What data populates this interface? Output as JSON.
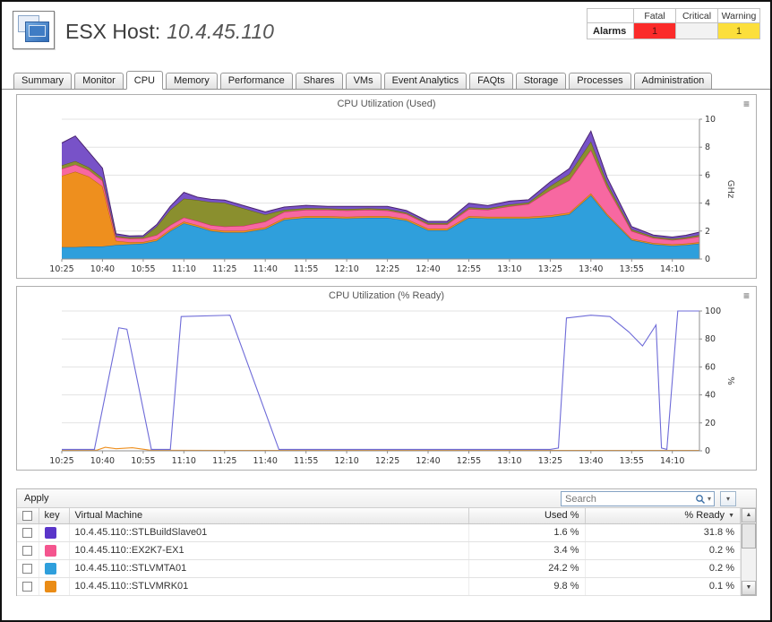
{
  "header": {
    "title_prefix": "ESX Host:",
    "title_value": "10.4.45.110"
  },
  "alarms": {
    "label": "Alarms",
    "levels": [
      {
        "name": "Fatal",
        "count": "1",
        "bg": "#fb2b2a",
        "fg": "#531211"
      },
      {
        "name": "Critical",
        "count": "",
        "bg": "#f2f2f2",
        "fg": "#333333"
      },
      {
        "name": "Warning",
        "count": "1",
        "bg": "#fcdf3c",
        "fg": "#4d4006"
      }
    ]
  },
  "tabs": [
    {
      "label": "Summary",
      "active": false
    },
    {
      "label": "Monitor",
      "active": false
    },
    {
      "label": "CPU",
      "active": true
    },
    {
      "label": "Memory",
      "active": false
    },
    {
      "label": "Performance",
      "active": false
    },
    {
      "label": "Shares",
      "active": false
    },
    {
      "label": "VMs",
      "active": false
    },
    {
      "label": "Event Analytics",
      "active": false
    },
    {
      "label": "FAQts",
      "active": false
    },
    {
      "label": "Storage",
      "active": false
    },
    {
      "label": "Processes",
      "active": false
    },
    {
      "label": "Administration",
      "active": false
    }
  ],
  "icons": {
    "chart_menu": "≡",
    "search_dropdown": "▾",
    "column_chooser": "▾",
    "sort_desc": "▼",
    "scroll_up": "▲",
    "scroll_down": "▼"
  },
  "toolbar": {
    "apply_label": "Apply",
    "search_placeholder": "Search"
  },
  "table": {
    "headers": {
      "key": "key",
      "vm": "Virtual Machine",
      "used": "Used %",
      "ready": "% Ready"
    },
    "rows": [
      {
        "color": "#5a35c9",
        "vm": "10.4.45.110::STLBuildSlave01",
        "used": "1.6 %",
        "ready": "31.8 %"
      },
      {
        "color": "#f4558e",
        "vm": "10.4.45.110::EX2K7-EX1",
        "used": "3.4 %",
        "ready": "0.2 %"
      },
      {
        "color": "#2f9fdc",
        "vm": "10.4.45.110::STLVMTA01",
        "used": "24.2 %",
        "ready": "0.2 %"
      },
      {
        "color": "#ea8c16",
        "vm": "10.4.45.110::STLVMRK01",
        "used": "9.8 %",
        "ready": "0.1 %"
      }
    ]
  },
  "chart_data": [
    {
      "type": "area",
      "title": "CPU Utilization (Used)",
      "ylabel": "GHz",
      "ylim": [
        0,
        10
      ],
      "yticks": [
        0,
        2,
        4,
        6,
        8,
        10
      ],
      "xmax": 235,
      "xtick_minutes": [
        0,
        15,
        30,
        45,
        60,
        75,
        90,
        105,
        120,
        135,
        150,
        165,
        180,
        195,
        210,
        225
      ],
      "xtick_labels": [
        "10:25",
        "10:40",
        "10:55",
        "11:10",
        "11:25",
        "11:40",
        "11:55",
        "12:10",
        "12:25",
        "12:40",
        "12:55",
        "13:10",
        "13:25",
        "13:40",
        "13:55",
        "14:10"
      ],
      "x": [
        0,
        5,
        10,
        15,
        20,
        25,
        30,
        35,
        40,
        45,
        50,
        55,
        60,
        67,
        75,
        82,
        90,
        98,
        105,
        113,
        120,
        127,
        135,
        142,
        150,
        157,
        165,
        172,
        180,
        187,
        195,
        201,
        210,
        218,
        225,
        230,
        235
      ],
      "series": [
        {
          "name": "10.4.45.110::STLVMTA01",
          "color": "#2f9fdc",
          "stroke": "#1b6fa8",
          "values": [
            0.85,
            0.85,
            0.9,
            0.9,
            1.0,
            1.05,
            1.1,
            1.3,
            2.0,
            2.55,
            2.3,
            2.0,
            1.9,
            1.9,
            2.15,
            2.8,
            2.95,
            2.95,
            2.9,
            2.95,
            2.95,
            2.75,
            2.05,
            2.05,
            2.95,
            2.9,
            2.9,
            2.9,
            3.0,
            3.2,
            4.55,
            3.1,
            1.35,
            1.05,
            0.95,
            1.0,
            1.1
          ]
        },
        {
          "name": "10.4.45.110::STLVMRK01",
          "color": "#ee8f1e",
          "stroke": "#b5680d",
          "values": [
            5.1,
            5.4,
            5.0,
            4.3,
            0.3,
            0.15,
            0.12,
            0.12,
            0.12,
            0.12,
            0.12,
            0.12,
            0.12,
            0.12,
            0.12,
            0.12,
            0.12,
            0.12,
            0.12,
            0.12,
            0.12,
            0.12,
            0.12,
            0.12,
            0.12,
            0.12,
            0.12,
            0.12,
            0.12,
            0.12,
            0.15,
            0.12,
            0.1,
            0.1,
            0.1,
            0.1,
            0.1
          ]
        },
        {
          "name": "10.4.45.110::EX2K7-EX1",
          "color": "#f768a1",
          "stroke": "#d61e78",
          "values": [
            0.5,
            0.5,
            0.45,
            0.4,
            0.25,
            0.25,
            0.25,
            0.3,
            0.3,
            0.3,
            0.3,
            0.3,
            0.3,
            0.35,
            0.4,
            0.45,
            0.45,
            0.45,
            0.45,
            0.45,
            0.4,
            0.35,
            0.3,
            0.3,
            0.5,
            0.5,
            0.75,
            0.9,
            1.8,
            2.3,
            3.1,
            1.9,
            0.55,
            0.35,
            0.3,
            0.35,
            0.4
          ]
        },
        {
          "name": "other-vm-olive",
          "color": "#8a8f2e",
          "stroke": "#606414",
          "values": [
            0.25,
            0.25,
            0.2,
            0.2,
            0.1,
            0.1,
            0.1,
            0.6,
            1.1,
            1.35,
            1.5,
            1.65,
            1.7,
            1.25,
            0.5,
            0.15,
            0.12,
            0.1,
            0.1,
            0.1,
            0.1,
            0.1,
            0.1,
            0.1,
            0.12,
            0.1,
            0.12,
            0.12,
            0.3,
            0.45,
            0.6,
            0.3,
            0.12,
            0.1,
            0.1,
            0.1,
            0.12
          ]
        },
        {
          "name": "10.4.45.110::STLBuildSlave01",
          "color": "#7852c8",
          "stroke": "#4a2470",
          "values": [
            1.6,
            1.8,
            1.1,
            0.7,
            0.15,
            0.1,
            0.1,
            0.15,
            0.25,
            0.45,
            0.2,
            0.2,
            0.2,
            0.2,
            0.2,
            0.2,
            0.2,
            0.15,
            0.2,
            0.15,
            0.2,
            0.15,
            0.12,
            0.12,
            0.3,
            0.2,
            0.25,
            0.2,
            0.3,
            0.4,
            0.75,
            0.4,
            0.2,
            0.12,
            0.12,
            0.15,
            0.2
          ]
        }
      ]
    },
    {
      "type": "line",
      "title": "CPU Utilization (% Ready)",
      "ylabel": "%",
      "ylim": [
        0,
        100
      ],
      "yticks": [
        0,
        20,
        40,
        60,
        80,
        100
      ],
      "xmax": 235,
      "xtick_minutes": [
        0,
        15,
        30,
        45,
        60,
        75,
        90,
        105,
        120,
        135,
        150,
        165,
        180,
        195,
        210,
        225
      ],
      "xtick_labels": [
        "10:25",
        "10:40",
        "10:55",
        "11:10",
        "11:25",
        "11:40",
        "11:55",
        "12:10",
        "12:25",
        "12:40",
        "12:55",
        "13:10",
        "13:25",
        "13:40",
        "13:55",
        "14:10"
      ],
      "series": [
        {
          "name": "orange-blip",
          "color": "#ee8f1e",
          "x": [
            0,
            13,
            16,
            20,
            26,
            32,
            40,
            60,
            120,
            180,
            235
          ],
          "values": [
            0.4,
            0.5,
            2.5,
            1.5,
            2.2,
            0.6,
            0.4,
            0.3,
            0.3,
            0.3,
            0.3
          ]
        },
        {
          "name": "percent-ready",
          "color": "#6e6bd8",
          "x": [
            0,
            12,
            21,
            24,
            33,
            40,
            44,
            62,
            80,
            95,
            110,
            130,
            150,
            170,
            180,
            183,
            186,
            195,
            202,
            209,
            214,
            219,
            221,
            223,
            227,
            235
          ],
          "values": [
            1,
            1,
            88,
            87,
            1,
            1,
            96,
            97,
            1,
            1,
            1,
            1,
            1,
            1,
            1,
            2,
            95,
            97,
            96,
            85,
            75,
            90,
            2,
            1,
            100,
            100
          ]
        }
      ]
    }
  ]
}
